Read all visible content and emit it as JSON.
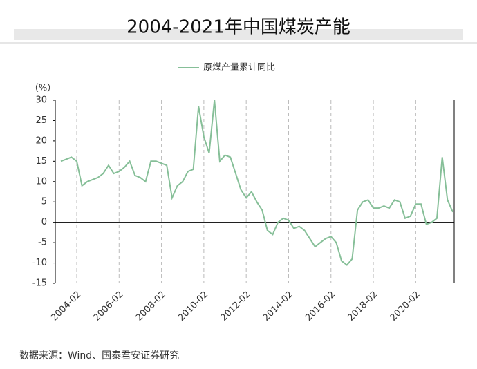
{
  "chart_data": {
    "type": "line",
    "title": "2004-2021年中国煤炭产能",
    "y_label": "（%）",
    "source": "数据来源：Wind、国泰君安证券研究",
    "categories": [
      null,
      null,
      null,
      "2004-02",
      null,
      null,
      null,
      null,
      null,
      null,
      null,
      "2006-02",
      null,
      null,
      null,
      null,
      null,
      null,
      null,
      "2008-02",
      null,
      null,
      null,
      null,
      null,
      null,
      null,
      "2010-02",
      null,
      null,
      null,
      null,
      null,
      null,
      null,
      "2012-02",
      null,
      null,
      null,
      null,
      null,
      null,
      null,
      "2014-02",
      null,
      null,
      null,
      null,
      null,
      null,
      null,
      "2016-02",
      null,
      null,
      null,
      null,
      null,
      null,
      null,
      "2018-02",
      null,
      null,
      null,
      null,
      null,
      null,
      null,
      "2020-02",
      null,
      null,
      null,
      null,
      null,
      null,
      null
    ],
    "series": [
      {
        "name": "原煤产量累计同比",
        "color": "#86bf98",
        "values": [
          15,
          15.5,
          16,
          15,
          9,
          10,
          10.5,
          11,
          12,
          14,
          12,
          12.5,
          13.5,
          15,
          11.5,
          11,
          10,
          15,
          15,
          14.5,
          14,
          6,
          9,
          10,
          12.5,
          13,
          28.5,
          21,
          17,
          30,
          15,
          16.5,
          16,
          12,
          8,
          6,
          7.5,
          5,
          3,
          -2,
          -3,
          0,
          1,
          0.5,
          -1.5,
          -1,
          -2,
          -4,
          -6,
          -5,
          -4,
          -3.5,
          -5,
          -9.5,
          -10.5,
          -9,
          3,
          5,
          5.5,
          3.5,
          3.5,
          4,
          3.5,
          5.5,
          5,
          1,
          1.5,
          4.5,
          4.5,
          -0.5,
          0,
          1,
          16,
          5.5,
          2.5
        ]
      }
    ],
    "ylim": [
      -15,
      30
    ],
    "yticks": [
      -15,
      -10,
      -5,
      0,
      5,
      10,
      15,
      20,
      25,
      30
    ],
    "grid": true
  }
}
